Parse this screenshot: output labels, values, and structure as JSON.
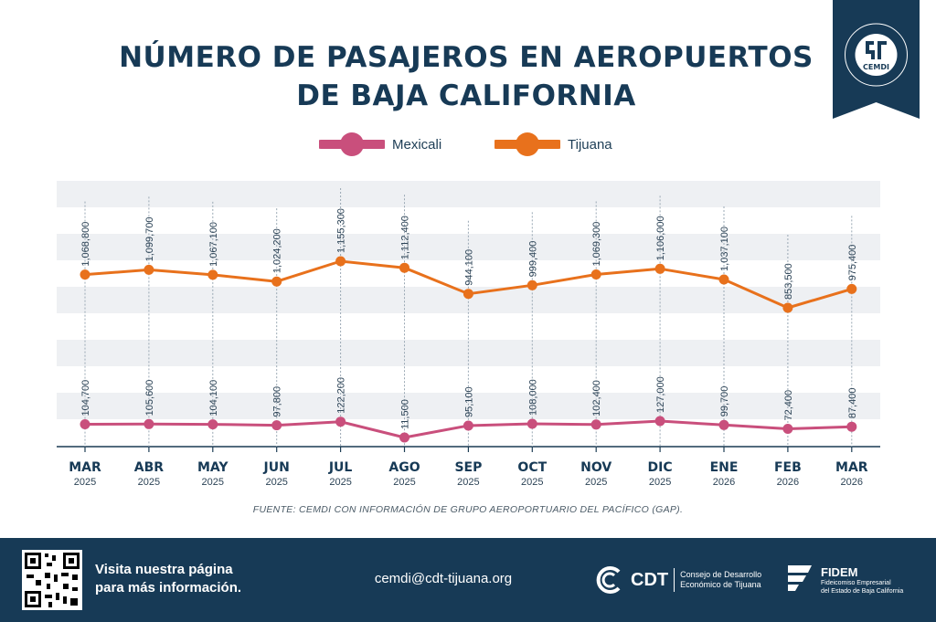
{
  "header": {
    "title_line1": "NÚMERO DE PASAJEROS EN AEROPUERTOS",
    "title_line2": "DE BAJA CALIFORNIA",
    "logo_text": "CEMDI",
    "logo_ring_text": "INFORMACIÓN ESTADÍSTICA PARA TOMA DE DECISIONES"
  },
  "colors": {
    "mexicali": "#c94f7c",
    "tijuana": "#e8711c",
    "navy": "#173a56",
    "band": "#eef0f3"
  },
  "chart_data": {
    "type": "line",
    "categories": [
      "MAR",
      "ABR",
      "MAY",
      "JUN",
      "JUL",
      "AGO",
      "SEP",
      "OCT",
      "NOV",
      "DIC",
      "ENE",
      "FEB",
      "MAR"
    ],
    "years": [
      "2025",
      "2025",
      "2025",
      "2025",
      "2025",
      "2025",
      "2025",
      "2025",
      "2025",
      "2025",
      "2026",
      "2026",
      "2026"
    ],
    "series": [
      {
        "name": "Mexicali",
        "values": [
          104700,
          105600,
          104100,
          97800,
          122200,
          11500,
          95100,
          108000,
          102400,
          127000,
          99700,
          72400,
          87400
        ],
        "labels": [
          "104,700",
          "105,600",
          "104,100",
          "97,800",
          "122,200",
          "11,500",
          "95,100",
          "108,000",
          "102,400",
          "127,000",
          "99,700",
          "72,400",
          "87,400"
        ]
      },
      {
        "name": "Tijuana",
        "values": [
          1068800,
          1099700,
          1067100,
          1024200,
          1155300,
          1112400,
          944100,
          999400,
          1069300,
          1106000,
          1037100,
          853500,
          975400
        ],
        "labels": [
          "1,068,800",
          "1,099,700",
          "1,067,100",
          "1,024,200",
          "1,155,300",
          "1,112,400",
          "944,100",
          "999,400",
          "1,069,300",
          "1,106,000",
          "1,037,100",
          "853,500",
          "975,400"
        ]
      }
    ],
    "legend": "top-center",
    "grid": true
  },
  "source": "FUENTE: CEMDI CON INFORMACIÓN DE GRUPO AEROPORTUARIO DEL PACÍFICO (GAP).",
  "footer": {
    "visit_line1": "Visita nuestra página",
    "visit_line2": "para más información.",
    "email": "cemdi@cdt-tijuana.org",
    "cdt_name": "CDT",
    "cdt_desc_line1": "Consejo de Desarrollo",
    "cdt_desc_line2": "Económico de Tijuana",
    "fidem_name": "FIDEM",
    "fidem_desc_line1": "Fideicomiso Empresarial",
    "fidem_desc_line2": "del Estado de Baja California"
  }
}
